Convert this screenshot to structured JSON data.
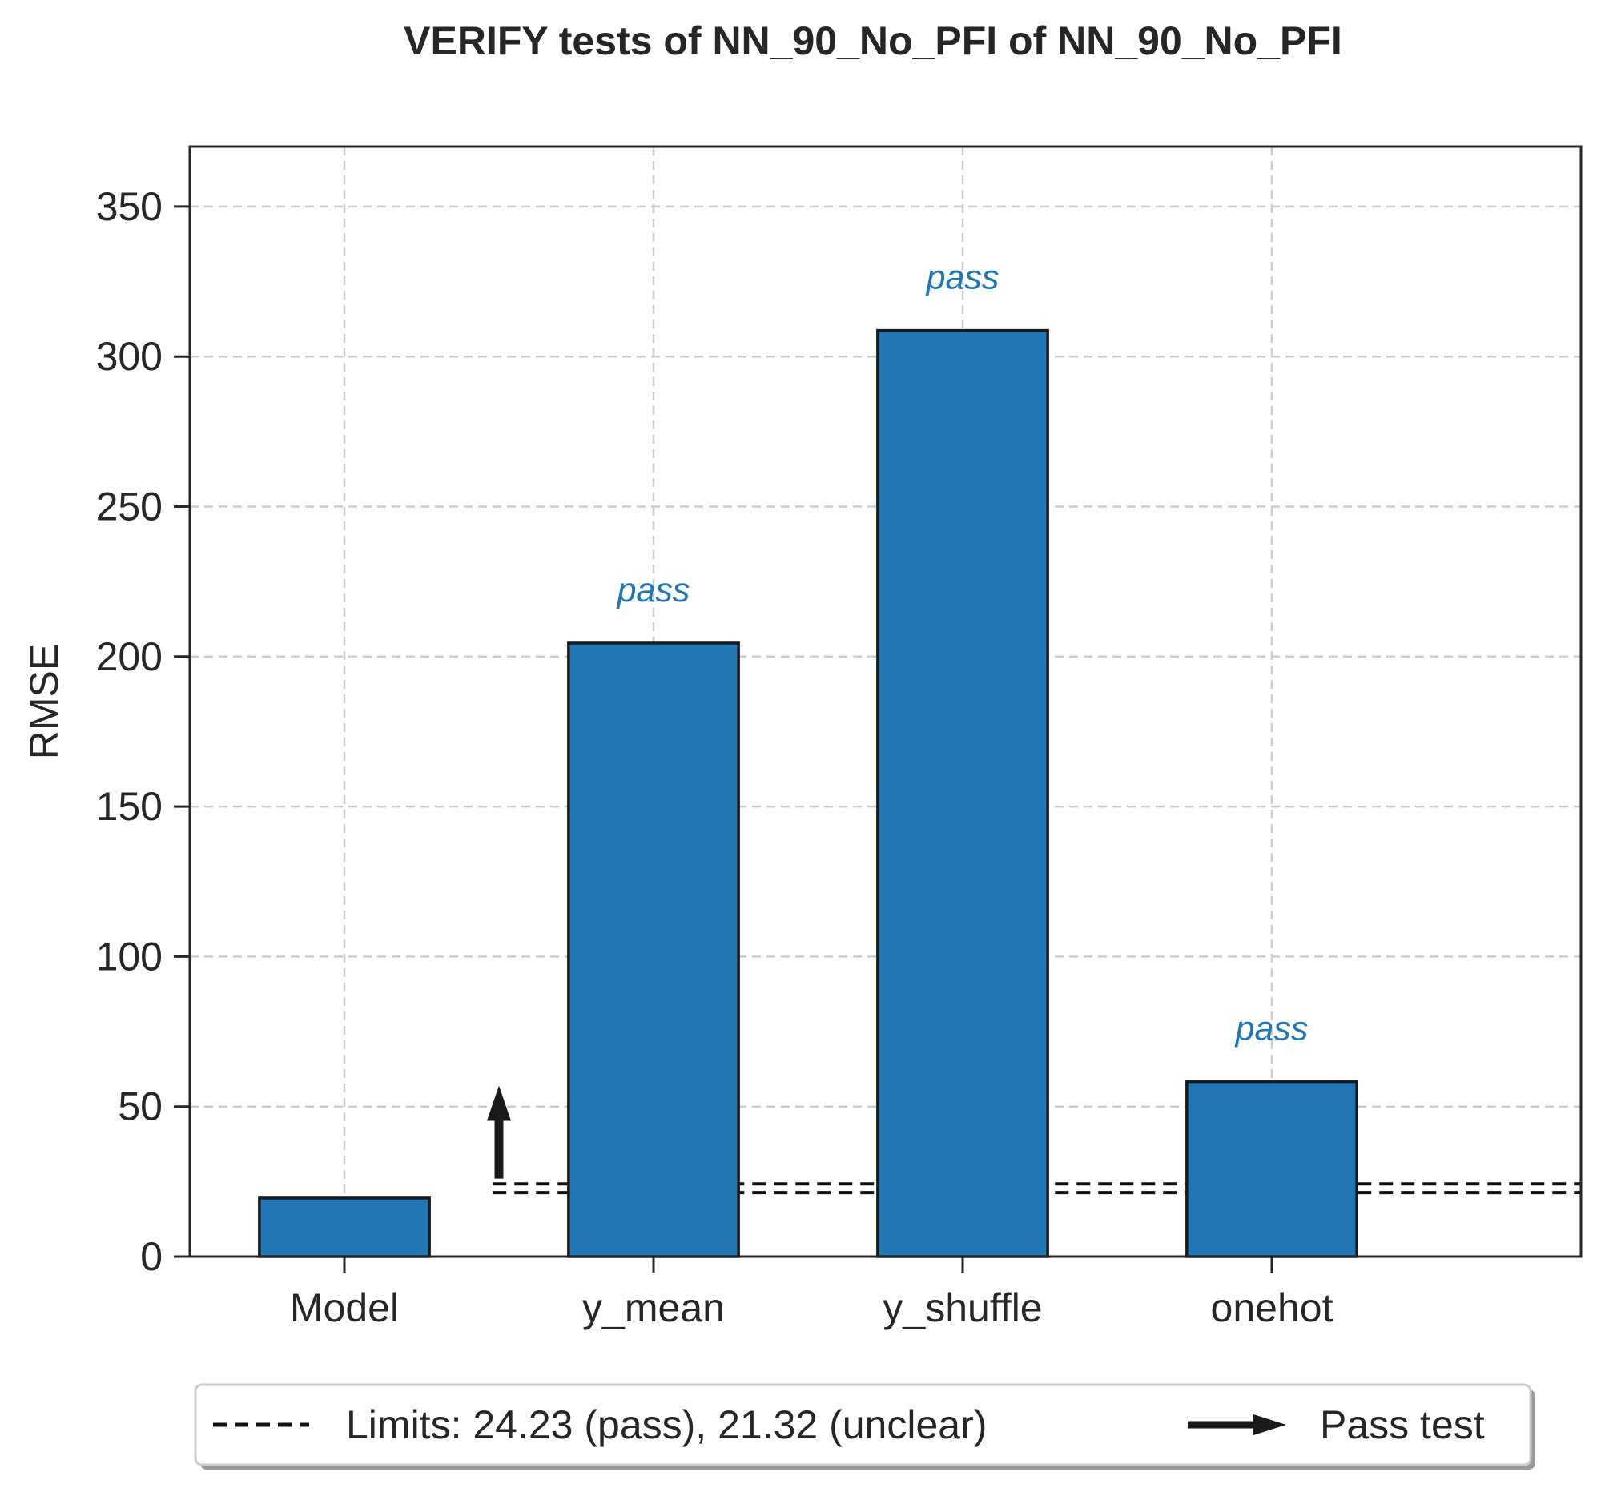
{
  "chart_data": {
    "type": "bar",
    "title": "VERIFY tests of NN_90_No_PFI of NN_90_No_PFI",
    "xlabel": "",
    "ylabel": "RMSE",
    "categories": [
      "Model",
      "y_mean",
      "y_shuffle",
      "onehot"
    ],
    "values": [
      19.5,
      204.5,
      308.7,
      58.3
    ],
    "ylim": [
      0,
      370
    ],
    "yticks": [
      0,
      50,
      100,
      150,
      200,
      250,
      300,
      350
    ],
    "grid": true,
    "limits": {
      "pass": 24.23,
      "unclear": 21.32
    },
    "bar_labels": [
      "",
      "pass",
      "pass",
      "pass"
    ],
    "pass_arrow": {
      "from": 26,
      "to": 57
    },
    "legend": {
      "placement": "bottom-center",
      "entries": [
        {
          "type": "dashed-line",
          "label": "Limits: 24.23 (pass), 21.32 (unclear)"
        },
        {
          "type": "arrow",
          "label": "Pass test"
        }
      ]
    },
    "colors": {
      "bar": "#2077b4",
      "bar_edge": "#1a1a1a",
      "pass_text": "#2077b4",
      "grid": "#cccccc",
      "axis": "#262626"
    }
  }
}
